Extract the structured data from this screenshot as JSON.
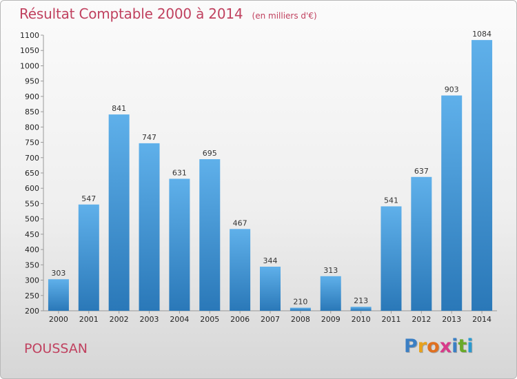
{
  "header": {
    "title": "Résultat Comptable 2000 à 2014",
    "subtitle": "(en milliers d'€)"
  },
  "commune": "POUSSAN",
  "brand": {
    "name": "Proxiti",
    "letters": [
      "P",
      "r",
      "o",
      "x",
      "i",
      "t",
      "i"
    ],
    "colors": [
      "#3b7fc4",
      "#e8a21c",
      "#e07020",
      "#d83a8a",
      "#3b7fc4",
      "#6aaa2a",
      "#2a9ad0"
    ]
  },
  "chart_data": {
    "type": "bar",
    "title": "Résultat Comptable 2000 à 2014",
    "subtitle": "(en milliers d'€)",
    "xlabel": "",
    "ylabel": "",
    "categories": [
      "2000",
      "2001",
      "2002",
      "2003",
      "2004",
      "2005",
      "2006",
      "2007",
      "2008",
      "2009",
      "2010",
      "2011",
      "2012",
      "2013",
      "2014"
    ],
    "values": [
      303,
      547,
      841,
      747,
      631,
      695,
      467,
      344,
      210,
      313,
      213,
      541,
      637,
      903,
      1084
    ],
    "value_labels": [
      "303",
      "547",
      "841",
      "747",
      "631",
      "695",
      "467",
      "344",
      "210",
      "313",
      "213",
      "541",
      "637",
      "903",
      "1084"
    ],
    "ylim": [
      200,
      1100
    ],
    "yticks": [
      "200",
      "250",
      "300",
      "350",
      "400",
      "450",
      "500",
      "550",
      "600",
      "650",
      "700",
      "750",
      "800",
      "850",
      "900",
      "950",
      "1000",
      "1050",
      "1100"
    ],
    "grid": false,
    "legend": "none",
    "colors": {
      "bar_top": "#5fb0ea",
      "bar_bottom": "#2a78b8"
    }
  }
}
